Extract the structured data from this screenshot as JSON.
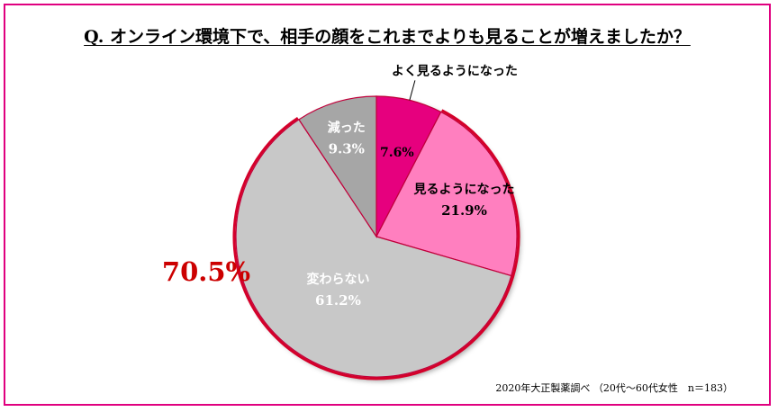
{
  "chart_data": {
    "type": "pie",
    "title": "Q. オンライン環境下で、相手の顔をこれまでよりも見ることが増えましたか？",
    "slices": [
      {
        "label": "よく見るようになった",
        "value": 7.6,
        "value_label": "7.6%",
        "color": "#e6007e"
      },
      {
        "label": "見るようになった",
        "value": 21.9,
        "value_label": "21.9%",
        "color": "#ff7fbf"
      },
      {
        "label": "変わらない",
        "value": 61.2,
        "value_label": "61.2%",
        "color": "#c8c8c8"
      },
      {
        "label": "減った",
        "value": 9.3,
        "value_label": "9.3%",
        "color": "#a6a6a6"
      }
    ],
    "annotation": "70.5%",
    "source": "2020年大正製薬調べ （20代～60代女性　n＝183）"
  }
}
